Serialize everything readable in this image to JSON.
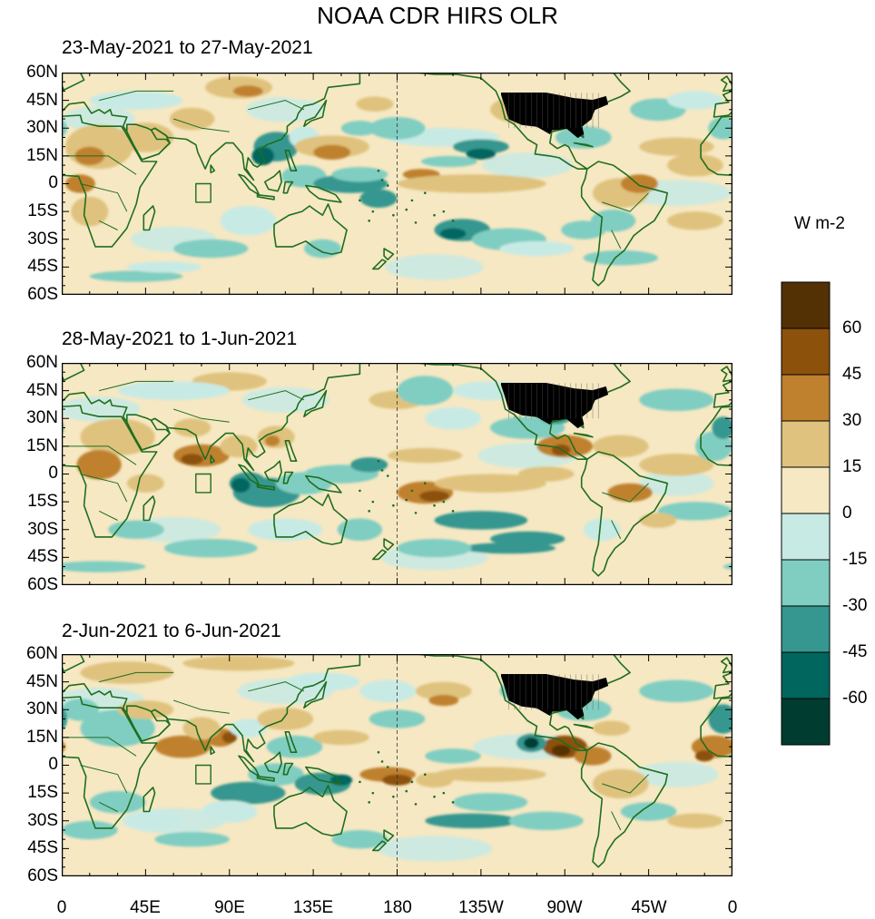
{
  "title": "NOAA CDR HIRS OLR",
  "panels": [
    {
      "label": "23-May-2021 to 27-May-2021"
    },
    {
      "label": "28-May-2021 to 1-Jun-2021"
    },
    {
      "label": "2-Jun-2021 to 6-Jun-2021"
    }
  ],
  "lat_labels": [
    "60N",
    "45N",
    "30N",
    "15N",
    "0",
    "15S",
    "30S",
    "45S",
    "60S"
  ],
  "lon_labels": [
    "0",
    "45E",
    "90E",
    "135E",
    "180",
    "135W",
    "90W",
    "45W",
    "0"
  ],
  "colorbar": {
    "units": "W m-2",
    "labels": [
      "60",
      "45",
      "30",
      "15",
      "0",
      "-15",
      "-30",
      "-45",
      "-60"
    ],
    "colors": [
      "#543005",
      "#8c510a",
      "#bf812d",
      "#dfc27d",
      "#f6e8c3",
      "#c7eae5",
      "#80cdc1",
      "#35978f",
      "#01665e",
      "#003c30"
    ]
  },
  "colors": {
    "coastline": "#1f6e1f",
    "land_overlay": "#000000"
  }
}
